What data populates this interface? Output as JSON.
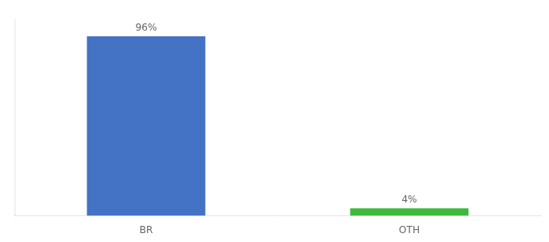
{
  "chart_data": {
    "type": "bar",
    "categories": [
      "BR",
      "OTH"
    ],
    "values": [
      96,
      4
    ],
    "value_labels": [
      "96%",
      "4%"
    ],
    "data_labels": true,
    "colors": [
      "#4472c4",
      "#3dba3d"
    ],
    "ylim": [
      0,
      105
    ],
    "tick_labels": "x",
    "grid": false
  }
}
